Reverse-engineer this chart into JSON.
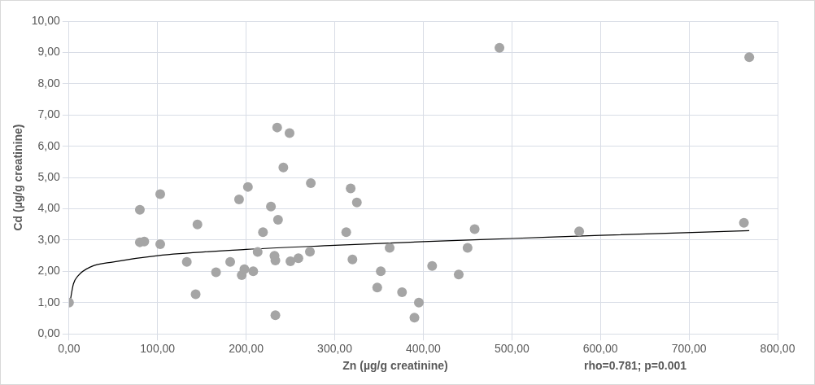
{
  "chart_data": {
    "type": "scatter",
    "xlabel": "Zn   (µg/g creatinine)",
    "ylabel": "Cd (µg/g creatinine)",
    "annotations": [
      "rho=0.781; p=0.001"
    ],
    "xlim": [
      0,
      800
    ],
    "xticks": [
      {
        "value": 0,
        "label": "0,00"
      },
      {
        "value": 100,
        "label": "100,00"
      },
      {
        "value": 200,
        "label": "200,00"
      },
      {
        "value": 300,
        "label": "300,00"
      },
      {
        "value": 400,
        "label": "400,00"
      },
      {
        "value": 500,
        "label": "500,00"
      },
      {
        "value": 600,
        "label": "600,00"
      },
      {
        "value": 700,
        "label": "700,00"
      },
      {
        "value": 800,
        "label": "800,00"
      }
    ],
    "ylim": [
      0,
      10
    ],
    "yticks": [
      {
        "value": 0,
        "label": "0,00"
      },
      {
        "value": 1,
        "label": "1,00"
      },
      {
        "value": 2,
        "label": "2,00"
      },
      {
        "value": 3,
        "label": "3,00"
      },
      {
        "value": 4,
        "label": "4,00"
      },
      {
        "value": 5,
        "label": "5,00"
      },
      {
        "value": 6,
        "label": "6,00"
      },
      {
        "value": 7,
        "label": "7,00"
      },
      {
        "value": 8,
        "label": "8,00"
      },
      {
        "value": 9,
        "label": "9,00"
      },
      {
        "value": 10,
        "label": "10,00"
      }
    ],
    "grid": true,
    "marker": "circle",
    "legend": false,
    "series": [
      {
        "color": "#a5a5a5",
        "x": [
          0,
          80,
          80,
          85,
          103,
          103,
          133,
          143,
          145,
          166,
          182,
          192,
          195,
          198,
          202,
          208,
          213,
          219,
          228,
          232,
          233,
          233,
          235,
          236,
          242,
          249,
          250,
          259,
          272,
          273,
          313,
          318,
          320,
          325,
          348,
          352,
          362,
          376,
          390,
          395,
          410,
          440,
          450,
          458,
          486,
          576,
          762,
          768
        ],
        "values": [
          1.0,
          3.97,
          2.93,
          2.95,
          4.47,
          2.87,
          2.3,
          1.27,
          3.5,
          1.97,
          2.3,
          4.3,
          1.88,
          2.07,
          4.7,
          2.0,
          2.62,
          3.25,
          4.07,
          2.5,
          2.35,
          0.6,
          6.6,
          3.65,
          5.32,
          6.42,
          2.32,
          2.42,
          2.63,
          4.82,
          3.25,
          4.65,
          2.38,
          4.2,
          1.48,
          2.0,
          2.75,
          1.33,
          0.52,
          1.0,
          2.17,
          1.9,
          2.75,
          3.35,
          9.15,
          3.28,
          3.55,
          8.85
        ]
      },
      {
        "type": "line",
        "color": "#000000",
        "marker": "none",
        "x": [
          1,
          5,
          10,
          25,
          50,
          100,
          200,
          300,
          400,
          500,
          600,
          768
        ],
        "values": [
          1.0,
          1.6,
          1.85,
          2.15,
          2.3,
          2.5,
          2.7,
          2.83,
          2.95,
          3.05,
          3.15,
          3.3
        ]
      }
    ]
  }
}
